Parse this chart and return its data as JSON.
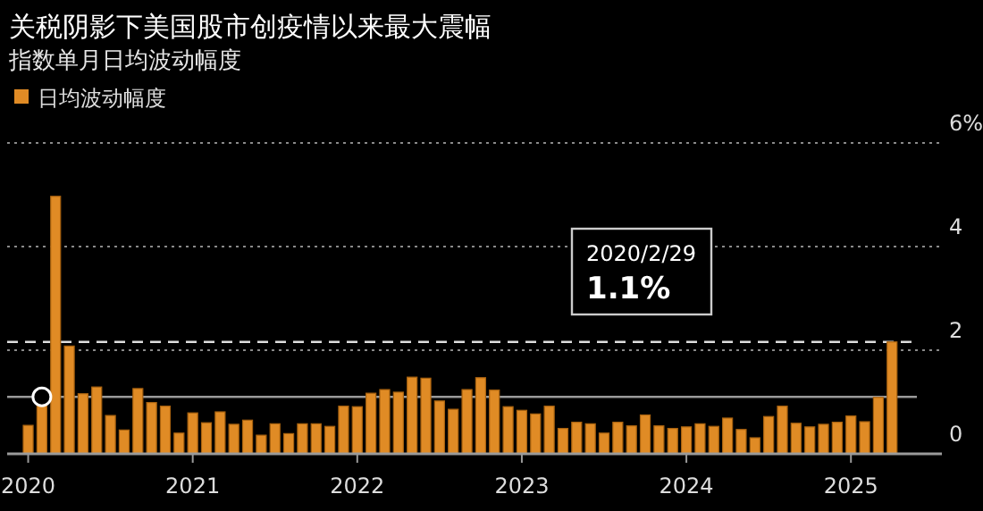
{
  "chart_data": {
    "type": "bar",
    "title": "关税阴影下美国股市创疫情以来最大震幅",
    "subtitle": "指数单月日均波动幅度",
    "x": [
      "2020-01",
      "2020-02",
      "2020-03",
      "2020-04",
      "2020-05",
      "2020-06",
      "2020-07",
      "2020-08",
      "2020-09",
      "2020-10",
      "2020-11",
      "2020-12",
      "2021-01",
      "2021-02",
      "2021-03",
      "2021-04",
      "2021-05",
      "2021-06",
      "2021-07",
      "2021-08",
      "2021-09",
      "2021-10",
      "2021-11",
      "2021-12",
      "2022-01",
      "2022-02",
      "2022-03",
      "2022-04",
      "2022-05",
      "2022-06",
      "2022-07",
      "2022-08",
      "2022-09",
      "2022-10",
      "2022-11",
      "2022-12",
      "2023-01",
      "2023-02",
      "2023-03",
      "2023-04",
      "2023-05",
      "2023-06",
      "2023-07",
      "2023-08",
      "2023-09",
      "2023-10",
      "2023-11",
      "2023-12",
      "2024-01",
      "2024-02",
      "2024-03",
      "2024-04",
      "2024-05",
      "2024-06",
      "2024-07",
      "2024-08",
      "2024-09",
      "2024-10",
      "2024-11",
      "2024-12",
      "2025-01",
      "2025-02",
      "2025-03",
      "2025-04"
    ],
    "series": [
      {
        "name": "日均波动幅度",
        "color": "#e08b25",
        "values": [
          0.55,
          0.94,
          4.97,
          2.08,
          1.16,
          1.29,
          0.74,
          0.46,
          1.26,
          0.99,
          0.92,
          0.4,
          0.79,
          0.6,
          0.81,
          0.57,
          0.65,
          0.36,
          0.58,
          0.39,
          0.58,
          0.58,
          0.53,
          0.92,
          0.91,
          1.17,
          1.24,
          1.19,
          1.48,
          1.46,
          1.02,
          0.86,
          1.24,
          1.47,
          1.23,
          0.91,
          0.84,
          0.77,
          0.92,
          0.49,
          0.61,
          0.58,
          0.4,
          0.61,
          0.54,
          0.75,
          0.54,
          0.49,
          0.52,
          0.58,
          0.53,
          0.69,
          0.47,
          0.31,
          0.72,
          0.92,
          0.59,
          0.52,
          0.57,
          0.61,
          0.73,
          0.62,
          1.09,
          2.16
        ]
      }
    ],
    "xlim": [
      "2019-11-15",
      "2025-07-20"
    ],
    "xticks": [
      "2020",
      "2021",
      "2022",
      "2023",
      "2024",
      "2025"
    ],
    "ylim": [
      0,
      6
    ],
    "yticks": [
      0,
      2,
      4,
      {
        "value": 6,
        "label": "6%"
      }
    ],
    "grid": "y",
    "legend": "top left",
    "ref_lines": [
      {
        "axis": "y",
        "value": 1.1,
        "line_style": "solid",
        "color": "#9a9a9a"
      },
      {
        "axis": "y",
        "value": 2.16,
        "line_style": "dashed",
        "color": "#dddddd"
      }
    ],
    "annotations": [
      "2020/2/29",
      "1.1%"
    ]
  }
}
